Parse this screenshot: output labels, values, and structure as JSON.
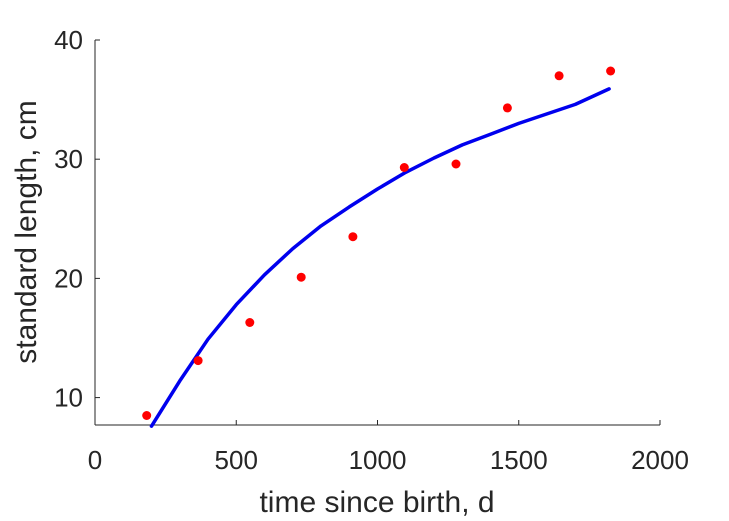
{
  "chart_data": {
    "type": "scatter",
    "xlabel": "time since birth, d",
    "ylabel": "standard length, cm",
    "xlim": [
      0,
      2000
    ],
    "ylim": [
      7.7,
      40
    ],
    "xticks": [
      0,
      500,
      1000,
      1500,
      2000
    ],
    "yticks": [
      10,
      20,
      30,
      40
    ],
    "xtick_labels": [
      "0",
      "500",
      "1000",
      "1500",
      "2000"
    ],
    "ytick_labels": [
      "10",
      "20",
      "30",
      "40"
    ],
    "grid": false,
    "series": [
      {
        "kind": "scatter",
        "color": "#ff0000",
        "x": [
          183,
          365,
          548,
          730,
          913,
          1095,
          1278,
          1460,
          1643,
          1825
        ],
        "y": [
          8.5,
          13.1,
          16.3,
          20.1,
          23.5,
          29.3,
          29.6,
          34.3,
          37.0,
          37.4
        ]
      },
      {
        "kind": "line",
        "color": "#0000ee",
        "x": [
          200,
          300,
          400,
          500,
          600,
          700,
          800,
          900,
          1000,
          1100,
          1200,
          1300,
          1400,
          1500,
          1600,
          1700,
          1820
        ],
        "y": [
          7.6,
          11.4,
          14.9,
          17.8,
          20.3,
          22.5,
          24.4,
          26.0,
          27.5,
          28.9,
          30.1,
          31.2,
          32.1,
          33.0,
          33.8,
          34.6,
          35.9
        ]
      }
    ]
  }
}
